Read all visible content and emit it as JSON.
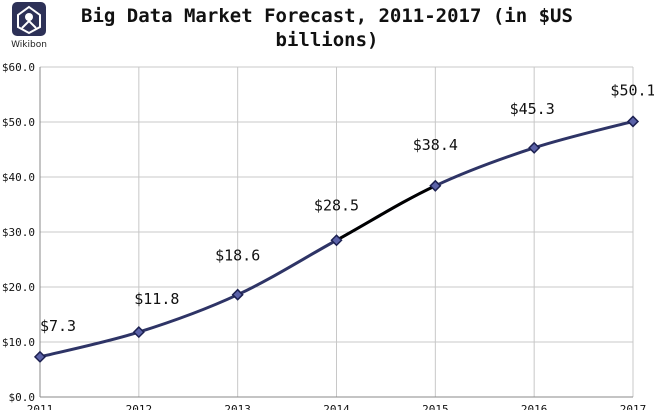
{
  "logo": {
    "text": "Wikibon"
  },
  "chart_data": {
    "type": "line",
    "title_line1": "Big Data Market Forecast, 2011-2017 (in $US",
    "title_line2": "billions)",
    "x": [
      "2011",
      "2012",
      "2013",
      "2014",
      "2015",
      "2016",
      "2017"
    ],
    "series": [
      {
        "values": [
          7.3,
          11.8,
          18.6,
          28.5,
          38.4,
          45.3,
          50.1
        ]
      }
    ],
    "data_labels": [
      "$7.3",
      "$11.8",
      "$18.6",
      "$28.5",
      "$38.4",
      "$45.3",
      "$50.1"
    ],
    "y_ticks": [
      0,
      10,
      20,
      30,
      40,
      50,
      60
    ],
    "y_tick_labels": [
      "$0.0",
      "$10.0",
      "$20.0",
      "$30.0",
      "$40.0",
      "$50.0",
      "$60.0"
    ],
    "ylim": [
      0,
      60
    ],
    "grid": true,
    "colors": {
      "line": "#2e3466",
      "highlight": "#000000",
      "marker": "#5b62a8",
      "grid": "#c8c8c8"
    }
  }
}
